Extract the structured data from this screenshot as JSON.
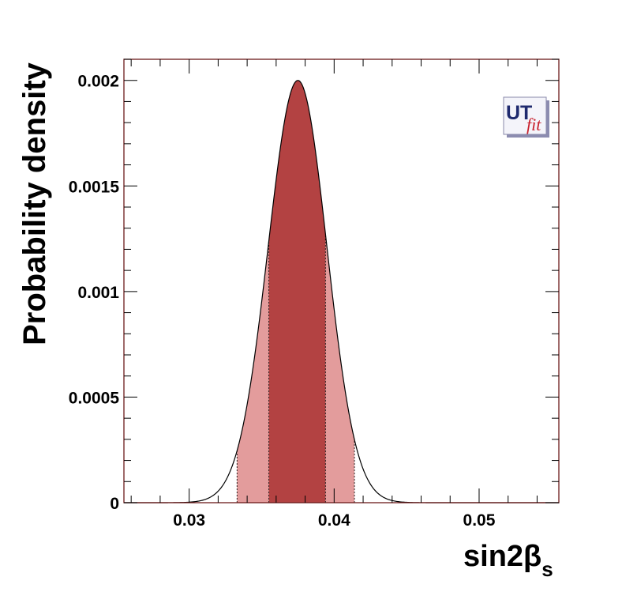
{
  "chart_data": {
    "type": "area",
    "title": "",
    "xlabel": "sin2β",
    "xlabel_subscript": "s",
    "ylabel": "Probability density",
    "xlim": [
      0.0255,
      0.0555
    ],
    "ylim": [
      0,
      0.0021
    ],
    "x_ticks": [
      {
        "value": 0.03,
        "label": "0.03"
      },
      {
        "value": 0.04,
        "label": "0.04"
      },
      {
        "value": 0.05,
        "label": "0.05"
      }
    ],
    "y_ticks": [
      {
        "value": 0,
        "label": "0"
      },
      {
        "value": 0.0005,
        "label": "0.0005"
      },
      {
        "value": 0.001,
        "label": "0.001"
      },
      {
        "value": 0.0015,
        "label": "0.0015"
      },
      {
        "value": 0.002,
        "label": "0.002"
      }
    ],
    "distribution": {
      "peak_x": 0.0375,
      "peak_y": 0.002,
      "sigma_left": 0.00205,
      "sigma_right": 0.002
    },
    "regions": [
      {
        "range": [
          0.0333,
          0.0414
        ],
        "color": "#e39c9c"
      },
      {
        "range": [
          0.0355,
          0.0394
        ],
        "color": "#b34242"
      }
    ],
    "colors": {
      "frame": "#6b1a1a",
      "curve": "#000000"
    },
    "logo": {
      "text_main": "UT",
      "text_sub": "fit"
    }
  }
}
